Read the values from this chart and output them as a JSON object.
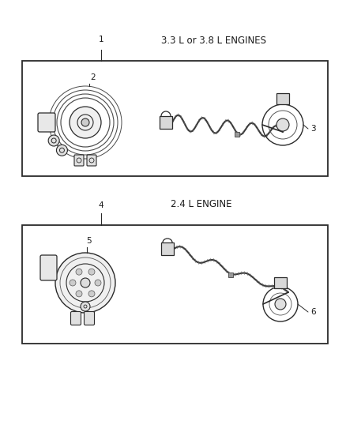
{
  "bg_color": "#ffffff",
  "box1_label": "3.3 L or 3.8 L ENGINES",
  "box2_label": "2.4 L ENGINE",
  "font_size_label": 8.5,
  "font_size_num": 7.5,
  "text_color": "#1a1a1a",
  "line_color": "#2a2a2a",
  "part_color": "#3a3a3a",
  "fig_w": 4.38,
  "fig_h": 5.33,
  "dpi": 100
}
